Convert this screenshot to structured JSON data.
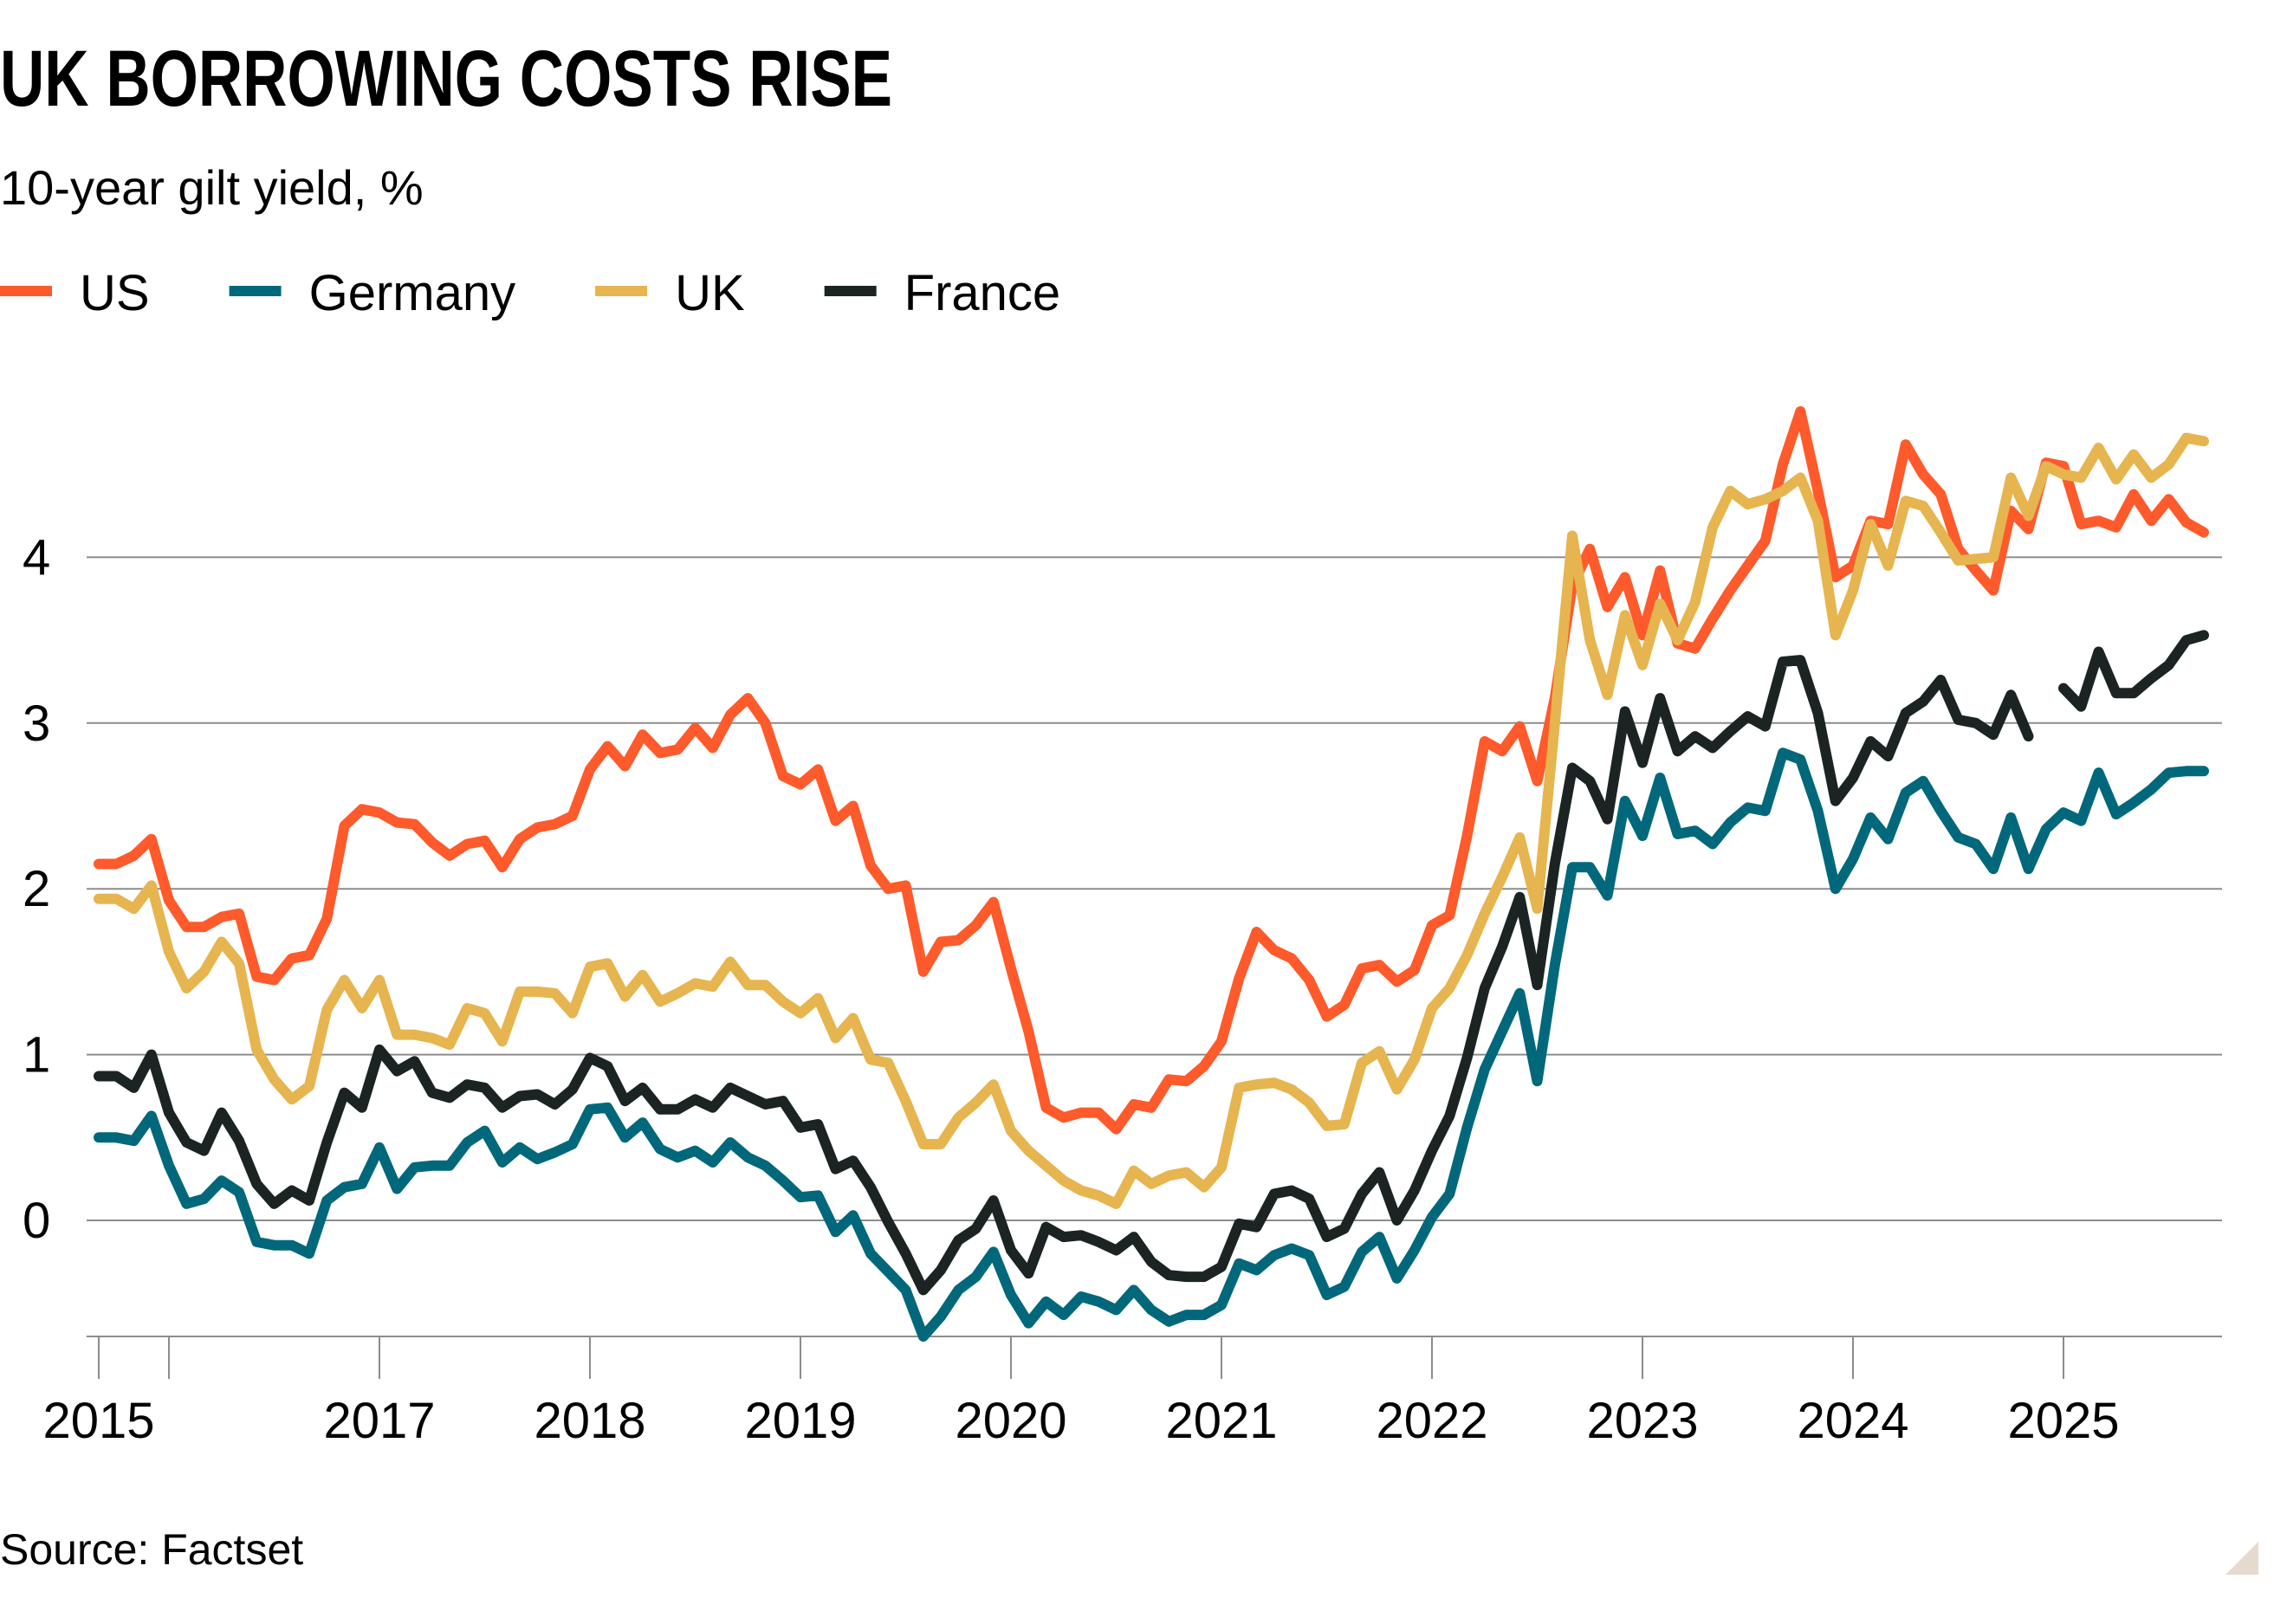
{
  "chart_data": {
    "type": "line",
    "title": "UK BORROWING COSTS RISE",
    "subtitle": "10-year gilt yield, %",
    "source": "Source: Factset",
    "x_start": "2015-09",
    "x_frequency": "monthly",
    "xlim": [
      "2015-09",
      "2025-09"
    ],
    "ylim": [
      -0.7,
      4.9
    ],
    "y_ticks": [
      0,
      1,
      2,
      3,
      4
    ],
    "y_tick_labels": [
      "0",
      "1",
      "2",
      "3",
      "4"
    ],
    "x_ticks": [
      {
        "date": "2015-09",
        "label": "2015"
      },
      {
        "date": "2016-01",
        "label": ""
      },
      {
        "date": "2017-01",
        "label": "2017"
      },
      {
        "date": "2018-01",
        "label": "2018"
      },
      {
        "date": "2019-01",
        "label": "2019"
      },
      {
        "date": "2020-01",
        "label": "2020"
      },
      {
        "date": "2021-01",
        "label": "2021"
      },
      {
        "date": "2022-01",
        "label": "2022"
      },
      {
        "date": "2023-01",
        "label": "2023"
      },
      {
        "date": "2024-01",
        "label": "2024"
      },
      {
        "date": "2025-01",
        "label": "2025"
      }
    ],
    "grid": "horizontal",
    "legend_placement": "top-left",
    "series": [
      {
        "name": "US",
        "color": "#ff5a2b",
        "values": [
          2.15,
          2.15,
          2.2,
          2.3,
          1.93,
          1.77,
          1.77,
          1.83,
          1.85,
          1.47,
          1.45,
          1.58,
          1.6,
          1.82,
          2.38,
          2.48,
          2.46,
          2.4,
          2.39,
          2.28,
          2.2,
          2.27,
          2.29,
          2.13,
          2.3,
          2.37,
          2.39,
          2.44,
          2.72,
          2.86,
          2.74,
          2.93,
          2.82,
          2.84,
          2.97,
          2.85,
          3.05,
          3.15,
          3.0,
          2.68,
          2.63,
          2.72,
          2.41,
          2.5,
          2.14,
          2.0,
          2.02,
          1.5,
          1.68,
          1.69,
          1.78,
          1.92,
          1.52,
          1.14,
          0.68,
          0.62,
          0.65,
          0.65,
          0.55,
          0.7,
          0.68,
          0.85,
          0.84,
          0.93,
          1.08,
          1.46,
          1.74,
          1.63,
          1.58,
          1.45,
          1.23,
          1.3,
          1.52,
          1.54,
          1.44,
          1.51,
          1.78,
          1.84,
          2.32,
          2.89,
          2.83,
          2.98,
          2.65,
          3.15,
          3.83,
          4.05,
          3.7,
          3.88,
          3.53,
          3.92,
          3.48,
          3.45,
          3.63,
          3.8,
          3.95,
          4.1,
          4.56,
          4.88,
          4.4,
          3.88,
          3.95,
          4.22,
          4.2,
          4.68,
          4.5,
          4.38,
          4.05,
          3.92,
          3.8,
          4.28,
          4.17,
          4.57,
          4.55,
          4.2,
          4.22,
          4.18,
          4.38,
          4.22,
          4.35,
          4.21,
          4.15
        ]
      },
      {
        "name": "Germany",
        "color": "#00687a",
        "values": [
          0.5,
          0.5,
          0.48,
          0.63,
          0.33,
          0.1,
          0.13,
          0.24,
          0.17,
          -0.13,
          -0.15,
          -0.15,
          -0.2,
          0.12,
          0.2,
          0.22,
          0.44,
          0.19,
          0.32,
          0.33,
          0.33,
          0.47,
          0.54,
          0.35,
          0.44,
          0.37,
          0.41,
          0.46,
          0.67,
          0.68,
          0.5,
          0.59,
          0.43,
          0.38,
          0.42,
          0.35,
          0.47,
          0.38,
          0.33,
          0.24,
          0.14,
          0.15,
          -0.07,
          0.03,
          -0.2,
          -0.31,
          -0.42,
          -0.7,
          -0.58,
          -0.42,
          -0.34,
          -0.19,
          -0.45,
          -0.62,
          -0.49,
          -0.57,
          -0.46,
          -0.49,
          -0.54,
          -0.42,
          -0.54,
          -0.61,
          -0.57,
          -0.57,
          -0.51,
          -0.26,
          -0.3,
          -0.21,
          -0.17,
          -0.21,
          -0.45,
          -0.4,
          -0.19,
          -0.1,
          -0.35,
          -0.18,
          0.02,
          0.16,
          0.56,
          0.91,
          1.14,
          1.37,
          0.84,
          1.54,
          2.13,
          2.13,
          1.96,
          2.53,
          2.32,
          2.67,
          2.33,
          2.35,
          2.27,
          2.4,
          2.49,
          2.47,
          2.82,
          2.78,
          2.47,
          2.0,
          2.18,
          2.43,
          2.3,
          2.58,
          2.65,
          2.47,
          2.31,
          2.27,
          2.12,
          2.43,
          2.12,
          2.36,
          2.46,
          2.41,
          2.7,
          2.45,
          2.52,
          2.6,
          2.7,
          2.71,
          2.71
        ]
      },
      {
        "name": "UK",
        "color": "#e6b550",
        "values": [
          1.94,
          1.94,
          1.88,
          2.02,
          1.62,
          1.4,
          1.5,
          1.68,
          1.55,
          1.03,
          0.85,
          0.73,
          0.81,
          1.27,
          1.45,
          1.28,
          1.45,
          1.12,
          1.12,
          1.1,
          1.06,
          1.28,
          1.25,
          1.08,
          1.38,
          1.38,
          1.37,
          1.25,
          1.53,
          1.55,
          1.35,
          1.48,
          1.32,
          1.37,
          1.43,
          1.41,
          1.56,
          1.42,
          1.42,
          1.32,
          1.25,
          1.34,
          1.1,
          1.22,
          0.97,
          0.95,
          0.72,
          0.46,
          0.46,
          0.62,
          0.71,
          0.82,
          0.54,
          0.42,
          0.33,
          0.24,
          0.18,
          0.15,
          0.1,
          0.3,
          0.22,
          0.27,
          0.29,
          0.2,
          0.32,
          0.8,
          0.82,
          0.83,
          0.79,
          0.71,
          0.57,
          0.58,
          0.95,
          1.02,
          0.79,
          0.97,
          1.28,
          1.4,
          1.6,
          1.85,
          2.07,
          2.31,
          1.88,
          3.0,
          4.13,
          3.5,
          3.17,
          3.65,
          3.35,
          3.72,
          3.5,
          3.73,
          4.18,
          4.4,
          4.32,
          4.35,
          4.4,
          4.48,
          4.22,
          3.53,
          3.8,
          4.2,
          3.95,
          4.34,
          4.31,
          4.15,
          3.98,
          3.99,
          4.0,
          4.48,
          4.25,
          4.55,
          4.5,
          4.48,
          4.66,
          4.47,
          4.62,
          4.48,
          4.56,
          4.72,
          4.7
        ]
      },
      {
        "name": "France",
        "color": "#1b2423",
        "values": [
          0.87,
          0.87,
          0.8,
          1.0,
          0.65,
          0.47,
          0.42,
          0.65,
          0.48,
          0.22,
          0.1,
          0.18,
          0.12,
          0.47,
          0.77,
          0.68,
          1.03,
          0.9,
          0.96,
          0.77,
          0.74,
          0.82,
          0.8,
          0.68,
          0.75,
          0.76,
          0.7,
          0.79,
          0.98,
          0.93,
          0.72,
          0.8,
          0.67,
          0.67,
          0.73,
          0.68,
          0.8,
          0.75,
          0.7,
          0.72,
          0.56,
          0.58,
          0.31,
          0.36,
          0.2,
          -0.01,
          -0.2,
          -0.42,
          -0.3,
          -0.12,
          -0.05,
          0.12,
          -0.18,
          -0.32,
          -0.04,
          -0.1,
          -0.09,
          -0.13,
          -0.18,
          -0.1,
          -0.25,
          -0.33,
          -0.34,
          -0.34,
          -0.28,
          -0.02,
          -0.04,
          0.16,
          0.18,
          0.13,
          -0.1,
          -0.05,
          0.16,
          0.29,
          0.0,
          0.18,
          0.42,
          0.63,
          0.98,
          1.4,
          1.65,
          1.95,
          1.42,
          2.15,
          2.73,
          2.65,
          2.42,
          3.07,
          2.76,
          3.15,
          2.83,
          2.92,
          2.85,
          2.95,
          3.04,
          2.98,
          3.37,
          3.38,
          3.06,
          2.53,
          2.67,
          2.89,
          2.8,
          3.06,
          3.13,
          3.26,
          3.02,
          3.0,
          2.93,
          3.17,
          2.92,
          null,
          3.21,
          3.1,
          3.43,
          3.18,
          3.18,
          3.27,
          3.35,
          3.5,
          3.53
        ]
      }
    ]
  },
  "corner_mark_color": "#e6d9ce"
}
